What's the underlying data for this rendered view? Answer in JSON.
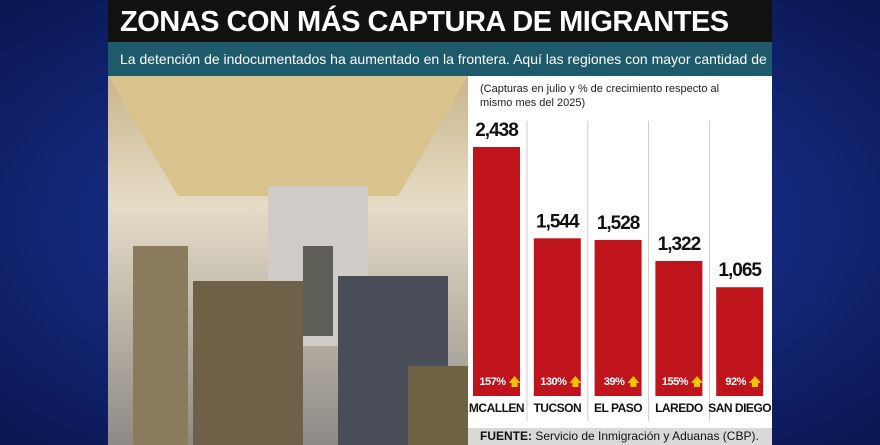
{
  "header": {
    "title": "ZONAS CON MÁS CAPTURA DE MIGRANTES",
    "subtitle": "La detención de indocumentados ha aumentado en la frontera. Aquí las regiones con mayor cantidad de capturas."
  },
  "chart_data": {
    "type": "bar",
    "note": "(Capturas en julio y % de crecimiento respecto al mismo mes del 2025)",
    "categories": [
      "MCALLEN",
      "TUCSON",
      "EL PASO",
      "LAREDO",
      "SAN DIEGO"
    ],
    "values": [
      2438,
      1544,
      1528,
      1322,
      1065
    ],
    "value_labels": [
      "2,438",
      "1,544",
      "1,528",
      "1,322",
      "1,065"
    ],
    "growth": [
      157,
      130,
      39,
      155,
      92
    ],
    "growth_labels": [
      "157%",
      "130%",
      "39%",
      "155%",
      "92%"
    ],
    "color": "#c0141c",
    "arrow_color": "#f5c400"
  },
  "source": {
    "label": "FUENTE:",
    "text": "Servicio de Inmigración y Aduanas (CBP)."
  }
}
